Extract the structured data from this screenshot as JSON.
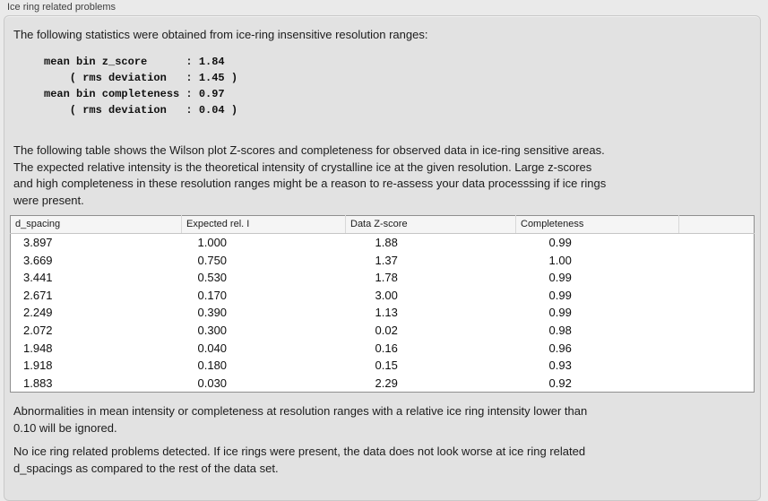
{
  "panel": {
    "title": "Ice ring related problems"
  },
  "intro": {
    "text": "The following statistics were obtained from ice-ring insensitive resolution ranges:"
  },
  "stats": {
    "lines": [
      "mean bin z_score      : 1.84",
      "    ( rms deviation   : 1.45 )",
      "mean bin completeness : 0.97",
      "    ( rms deviation   : 0.04 )"
    ],
    "mean_bin_z_score": 1.84,
    "z_score_rms_deviation": 1.45,
    "mean_bin_completeness": 0.97,
    "completeness_rms_deviation": 0.04
  },
  "description": {
    "lines": [
      "The following table shows the Wilson plot Z-scores and completeness for observed data in ice-ring sensitive areas.",
      "The expected relative intensity is the theoretical intensity of crystalline ice at the given resolution. Large z-scores",
      "and high completeness in these resolution ranges might be a reason to re-assess your data processsing if ice rings",
      "were present."
    ]
  },
  "table": {
    "columns": [
      "d_spacing",
      "Expected rel. I",
      "Data Z-score",
      "Completeness",
      ""
    ],
    "rows": [
      [
        "3.897",
        "1.000",
        "1.88",
        "0.99"
      ],
      [
        "3.669",
        "0.750",
        "1.37",
        "1.00"
      ],
      [
        "3.441",
        "0.530",
        "1.78",
        "0.99"
      ],
      [
        "2.671",
        "0.170",
        "3.00",
        "0.99"
      ],
      [
        "2.249",
        "0.390",
        "1.13",
        "0.99"
      ],
      [
        "2.072",
        "0.300",
        "0.02",
        "0.98"
      ],
      [
        "1.948",
        "0.040",
        "0.16",
        "0.96"
      ],
      [
        "1.918",
        "0.180",
        "0.15",
        "0.93"
      ],
      [
        "1.883",
        "0.030",
        "2.29",
        "0.92"
      ]
    ]
  },
  "notes": {
    "ignore": {
      "lines": [
        "Abnormalities in mean intensity or completeness at resolution ranges with a relative ice ring intensity lower than",
        "0.10 will be ignored."
      ]
    },
    "result": {
      "lines": [
        "No ice ring related problems detected. If ice rings were present, the data does not look worse at ice ring related",
        "d_spacings as compared to the rest of the data set."
      ]
    }
  }
}
